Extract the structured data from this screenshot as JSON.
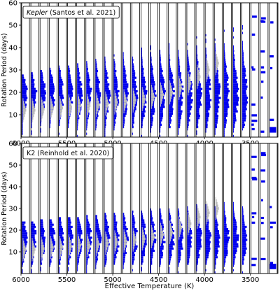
{
  "figure": {
    "xlabel": "Effective Temperature (K)"
  },
  "chart_data": [
    {
      "type": "bar",
      "id": "kepler",
      "legend_prefix": "Kepler",
      "legend_rest": "(Santos et al. 2021)",
      "ylabel": "Rotation Period (days)",
      "xlim": [
        6000,
        3200
      ],
      "ylim": [
        0,
        60
      ],
      "xticks": [
        6000,
        5500,
        5000,
        4500,
        4000,
        3500
      ],
      "yticks": [
        10,
        20,
        30,
        40,
        50,
        60
      ],
      "grid": false,
      "legend_position": "top-left",
      "bin_width_K": 100,
      "bin_centers_K": [
        5950,
        5850,
        5750,
        5650,
        5550,
        5450,
        5350,
        5250,
        5150,
        5050,
        4950,
        4850,
        4750,
        4650,
        4550,
        4450,
        4350,
        4250,
        4150,
        4050,
        3950,
        3850,
        3750,
        3650,
        3550,
        3450,
        3350,
        3250
      ],
      "bars_color": "#0000ee",
      "gray_color": "#bbbbbb",
      "gray_ridge_period_days": [
        12,
        12,
        12.5,
        13,
        13,
        13.5,
        14,
        14,
        14.5,
        15,
        15.5,
        16,
        16.5,
        17,
        18,
        19,
        20,
        22,
        24,
        27,
        30,
        33,
        0,
        0,
        0,
        0,
        0,
        0
      ],
      "sparse_bins_K": [
        3450,
        3350,
        3250
      ]
    },
    {
      "type": "bar",
      "id": "k2",
      "legend_prefix": "",
      "legend_rest": "K2 (Reinhold et al. 2020)",
      "ylabel": "Rotation Period (days)",
      "xlim": [
        6000,
        3200
      ],
      "ylim": [
        0,
        60
      ],
      "xticks": [
        6000,
        5500,
        5000,
        4500,
        4000,
        3500
      ],
      "yticks": [
        10,
        20,
        30,
        40,
        50,
        60
      ],
      "grid": false,
      "legend_position": "top-left",
      "bin_width_K": 100,
      "bin_centers_K": [
        5950,
        5850,
        5750,
        5650,
        5550,
        5450,
        5350,
        5250,
        5150,
        5050,
        4950,
        4850,
        4750,
        4650,
        4550,
        4450,
        4350,
        4250,
        4150,
        4050,
        3950,
        3850,
        3750,
        3650,
        3550,
        3450,
        3350,
        3250
      ],
      "bars_color": "#0000ee",
      "gray_color": "#bbbbbb",
      "gray_ridge_period_days": [
        11,
        11,
        11.5,
        12,
        12,
        12.5,
        13,
        13,
        13.5,
        14,
        14.5,
        15,
        15.5,
        16,
        17,
        18,
        19,
        21,
        23,
        26,
        28,
        30,
        0,
        0,
        0,
        0,
        0,
        0
      ],
      "sparse_bins_K": [
        3450,
        3350,
        3250
      ]
    }
  ]
}
